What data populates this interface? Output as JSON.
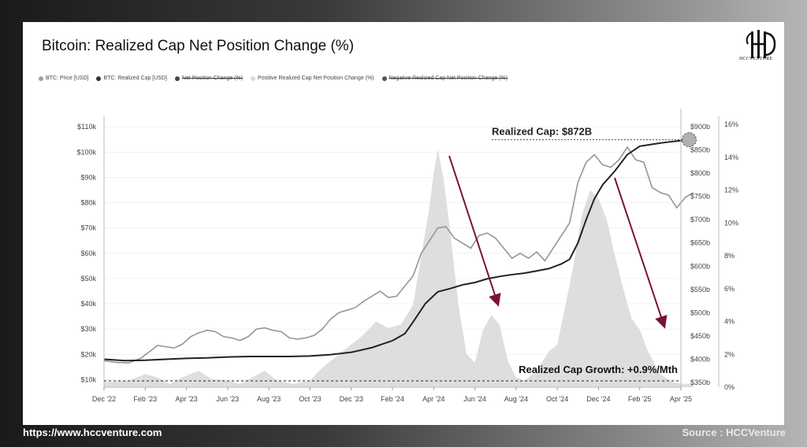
{
  "header": {
    "title": "Bitcoin: Realized Cap Net Position Change (%)"
  },
  "logo": {
    "text": "HCCVENTURE"
  },
  "legend": [
    {
      "label": "BTC: Price [USD]",
      "color": "#9aa0a0",
      "strike": false
    },
    {
      "label": "BTC: Realized Cap [USD]",
      "color": "#333333",
      "strike": false
    },
    {
      "label": "Net Position Change (%)",
      "color": "#5a3a3a",
      "strike": true
    },
    {
      "label": "Positive Realized Cap Net Position Change (%)",
      "color": "#dcdcdc",
      "strike": false
    },
    {
      "label": "Negative Realized Cap Net Position Change (%)",
      "color": "#6b4a4a",
      "strike": true
    }
  ],
  "footer": {
    "url": "https://www.hccventure.com",
    "source": "Source : HCCVenture"
  },
  "colors": {
    "price": "#8e9898",
    "realized": "#222222",
    "positive_area": "#dedede",
    "arrow": "#7a1430",
    "marker": "#b0b0b0"
  },
  "chart_data": {
    "type": "line",
    "title": "Bitcoin: Realized Cap Net Position Change (%)",
    "x_ticks": [
      "Dec '22",
      "Feb '23",
      "Apr '23",
      "Jun '23",
      "Aug '23",
      "Oct '23",
      "Dec '23",
      "Feb '24",
      "Apr '24",
      "Jun '24",
      "Aug '24",
      "Oct '24",
      "Dec '24",
      "Feb '25",
      "Apr '25"
    ],
    "y_left": {
      "ticks": [
        "$10k",
        "$20k",
        "$30k",
        "$40k",
        "$50k",
        "$60k",
        "$70k",
        "$80k",
        "$90k",
        "$100k",
        "$110k"
      ],
      "ylim": [
        7000,
        111000
      ]
    },
    "y_right_realized": {
      "ticks": [
        "$350b",
        "$400b",
        "$450b",
        "$500b",
        "$550b",
        "$600b",
        "$650b",
        "$700b",
        "$750b",
        "$800b",
        "$850b",
        "$900b"
      ],
      "ylim": [
        340,
        905
      ]
    },
    "y_right_pct": {
      "ticks": [
        "0%",
        "2%",
        "4%",
        "6%",
        "8%",
        "10%",
        "12%",
        "14%",
        "16%"
      ],
      "ylim": [
        0,
        16
      ]
    },
    "grid": true,
    "series": [
      {
        "name": "BTC: Price [USD]",
        "axis": "left",
        "points": [
          [
            0,
            17500
          ],
          [
            0.3,
            16800
          ],
          [
            0.6,
            16600
          ],
          [
            0.9,
            18500
          ],
          [
            1.1,
            21000
          ],
          [
            1.3,
            23500
          ],
          [
            1.5,
            23000
          ],
          [
            1.7,
            22500
          ],
          [
            1.9,
            24000
          ],
          [
            2.1,
            27000
          ],
          [
            2.3,
            28500
          ],
          [
            2.5,
            29500
          ],
          [
            2.7,
            29000
          ],
          [
            2.9,
            27000
          ],
          [
            3.1,
            26500
          ],
          [
            3.3,
            25500
          ],
          [
            3.5,
            27000
          ],
          [
            3.7,
            30000
          ],
          [
            3.9,
            30500
          ],
          [
            4.1,
            29500
          ],
          [
            4.3,
            29000
          ],
          [
            4.5,
            26500
          ],
          [
            4.7,
            26000
          ],
          [
            4.9,
            26500
          ],
          [
            5.1,
            27500
          ],
          [
            5.3,
            30000
          ],
          [
            5.5,
            34000
          ],
          [
            5.7,
            36500
          ],
          [
            5.9,
            37500
          ],
          [
            6.1,
            38500
          ],
          [
            6.3,
            41000
          ],
          [
            6.5,
            43000
          ],
          [
            6.7,
            45000
          ],
          [
            6.9,
            42500
          ],
          [
            7.1,
            43000
          ],
          [
            7.3,
            47000
          ],
          [
            7.5,
            51000
          ],
          [
            7.7,
            60000
          ],
          [
            7.9,
            65000
          ],
          [
            8.1,
            70000
          ],
          [
            8.3,
            70500
          ],
          [
            8.5,
            66000
          ],
          [
            8.7,
            64000
          ],
          [
            8.9,
            62000
          ],
          [
            9.1,
            67000
          ],
          [
            9.3,
            68000
          ],
          [
            9.5,
            66000
          ],
          [
            9.7,
            62000
          ],
          [
            9.9,
            58000
          ],
          [
            10.1,
            60000
          ],
          [
            10.3,
            58000
          ],
          [
            10.5,
            60500
          ],
          [
            10.7,
            57000
          ],
          [
            10.9,
            62000
          ],
          [
            11.1,
            67000
          ],
          [
            11.3,
            72000
          ],
          [
            11.5,
            88000
          ],
          [
            11.7,
            96000
          ],
          [
            11.9,
            99000
          ],
          [
            12.1,
            95000
          ],
          [
            12.3,
            94000
          ],
          [
            12.5,
            97000
          ],
          [
            12.7,
            102000
          ],
          [
            12.9,
            97000
          ],
          [
            13.1,
            96000
          ],
          [
            13.3,
            86000
          ],
          [
            13.5,
            84000
          ],
          [
            13.7,
            83000
          ],
          [
            13.9,
            78000
          ],
          [
            14.1,
            82000
          ],
          [
            14.3,
            84000
          ]
        ]
      },
      {
        "name": "BTC: Realized Cap [USD]",
        "axis": "right",
        "points": [
          [
            0,
            400
          ],
          [
            0.5,
            397
          ],
          [
            1,
            398
          ],
          [
            1.5,
            400
          ],
          [
            2,
            402
          ],
          [
            2.5,
            403
          ],
          [
            3,
            405
          ],
          [
            3.5,
            406
          ],
          [
            4,
            406
          ],
          [
            4.5,
            406
          ],
          [
            5,
            407
          ],
          [
            5.5,
            410
          ],
          [
            6,
            415
          ],
          [
            6.5,
            425
          ],
          [
            7,
            440
          ],
          [
            7.3,
            455
          ],
          [
            7.5,
            480
          ],
          [
            7.8,
            520
          ],
          [
            8.1,
            545
          ],
          [
            8.4,
            552
          ],
          [
            8.7,
            560
          ],
          [
            9,
            565
          ],
          [
            9.3,
            573
          ],
          [
            9.6,
            578
          ],
          [
            9.9,
            582
          ],
          [
            10.2,
            585
          ],
          [
            10.5,
            590
          ],
          [
            10.8,
            595
          ],
          [
            11.1,
            605
          ],
          [
            11.3,
            615
          ],
          [
            11.5,
            650
          ],
          [
            11.7,
            700
          ],
          [
            11.9,
            745
          ],
          [
            12.1,
            775
          ],
          [
            12.4,
            805
          ],
          [
            12.7,
            840
          ],
          [
            13.0,
            858
          ],
          [
            13.3,
            862
          ],
          [
            13.6,
            866
          ],
          [
            13.9,
            869
          ],
          [
            14.2,
            872
          ]
        ]
      },
      {
        "name": "Positive Realized Cap Net Position Change (%)",
        "axis": "pct",
        "points": [
          [
            0,
            0.3
          ],
          [
            0.6,
            0.4
          ],
          [
            1.0,
            0.8
          ],
          [
            1.3,
            0.6
          ],
          [
            1.6,
            0.2
          ],
          [
            1.9,
            0.6
          ],
          [
            2.3,
            1.0
          ],
          [
            2.6,
            0.5
          ],
          [
            3.0,
            0.4
          ],
          [
            3.3,
            0.2
          ],
          [
            3.6,
            0.6
          ],
          [
            3.9,
            1.0
          ],
          [
            4.2,
            0.4
          ],
          [
            4.6,
            0.2
          ],
          [
            5.0,
            0.4
          ],
          [
            5.3,
            1.2
          ],
          [
            5.7,
            2.0
          ],
          [
            6.0,
            2.6
          ],
          [
            6.3,
            3.2
          ],
          [
            6.6,
            4.0
          ],
          [
            6.9,
            3.6
          ],
          [
            7.2,
            3.8
          ],
          [
            7.5,
            5.0
          ],
          [
            7.7,
            8.0
          ],
          [
            7.9,
            11.0
          ],
          [
            8.0,
            13.0
          ],
          [
            8.1,
            14.5
          ],
          [
            8.25,
            12.5
          ],
          [
            8.4,
            9.5
          ],
          [
            8.6,
            5.0
          ],
          [
            8.8,
            2.0
          ],
          [
            9.0,
            1.5
          ],
          [
            9.2,
            3.5
          ],
          [
            9.4,
            4.4
          ],
          [
            9.6,
            3.8
          ],
          [
            9.8,
            1.6
          ],
          [
            10.0,
            0.6
          ],
          [
            10.2,
            0.4
          ],
          [
            10.4,
            0.8
          ],
          [
            10.6,
            1.4
          ],
          [
            10.8,
            2.2
          ],
          [
            11.0,
            2.6
          ],
          [
            11.2,
            5.0
          ],
          [
            11.4,
            7.5
          ],
          [
            11.6,
            10.5
          ],
          [
            11.8,
            12.0
          ],
          [
            12.0,
            11.5
          ],
          [
            12.2,
            10.2
          ],
          [
            12.4,
            8.0
          ],
          [
            12.6,
            6.0
          ],
          [
            12.8,
            4.2
          ],
          [
            13.0,
            3.5
          ],
          [
            13.2,
            2.2
          ],
          [
            13.5,
            0.8
          ],
          [
            13.8,
            0.3
          ],
          [
            14.1,
            0.2
          ],
          [
            14.3,
            0.2
          ]
        ]
      }
    ],
    "annotations": [
      {
        "label": "Realized Cap: $872B"
      },
      {
        "label": "Realized Cap Growth: +0.9%/Mth"
      }
    ]
  }
}
